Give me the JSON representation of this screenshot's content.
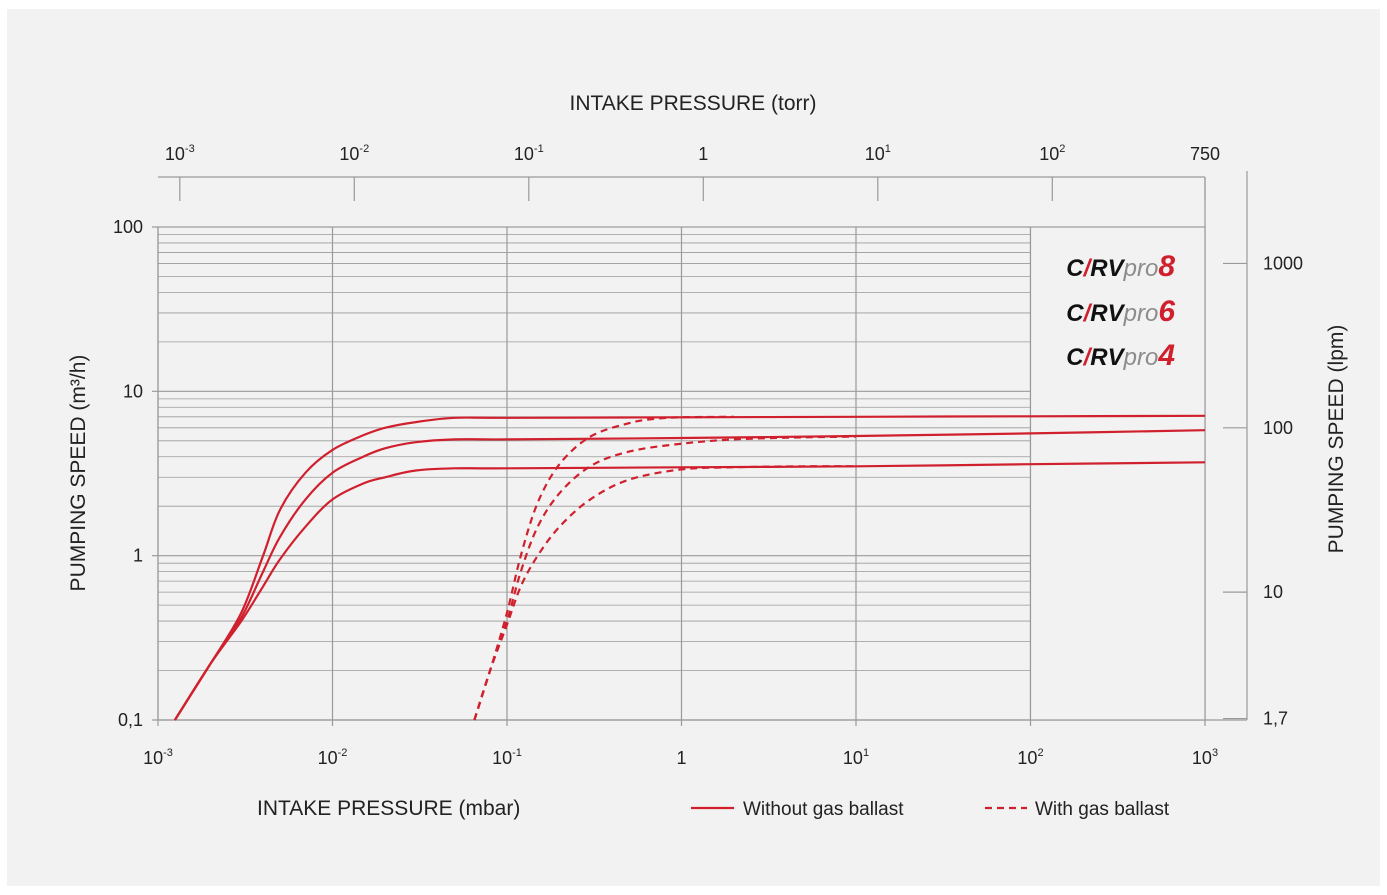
{
  "chart_data": {
    "type": "line",
    "xlabel_bold": "INTAKE PRESSURE",
    "xlabel_unit": "(mbar)",
    "top_xlabel_bold": "INTAKE PRESSURE",
    "top_xlabel_unit": "(torr)",
    "ylabel_bold": "PUMPING SPEED",
    "ylabel_unit": "(m³/h)",
    "right_ylabel_bold": "PUMPING SPEED",
    "right_ylabel_unit": "(lpm)",
    "x_scale": "log",
    "y_scale": "log",
    "xlim": [
      0.001,
      1000
    ],
    "ylim": [
      0.1,
      100
    ],
    "grid": true,
    "x_ticks": [
      {
        "value": 0.001,
        "base": "10",
        "exp": "-3"
      },
      {
        "value": 0.01,
        "base": "10",
        "exp": "-2"
      },
      {
        "value": 0.1,
        "base": "10",
        "exp": "-1"
      },
      {
        "value": 1,
        "base": "1",
        "exp": ""
      },
      {
        "value": 10,
        "base": "10",
        "exp": "1"
      },
      {
        "value": 100,
        "base": "10",
        "exp": "2"
      },
      {
        "value": 1000,
        "base": "10",
        "exp": "3"
      }
    ],
    "y_ticks": [
      {
        "value": 0.1,
        "label": "0,1"
      },
      {
        "value": 1,
        "label": "1"
      },
      {
        "value": 10,
        "label": "10"
      },
      {
        "value": 100,
        "label": "100"
      }
    ],
    "top_ticks": [
      {
        "torr": 0.001,
        "base": "10",
        "exp": "-3"
      },
      {
        "torr": 0.01,
        "base": "10",
        "exp": "-2"
      },
      {
        "torr": 0.1,
        "base": "10",
        "exp": "-1"
      },
      {
        "torr": 1,
        "base": "1",
        "exp": ""
      },
      {
        "torr": 10,
        "base": "10",
        "exp": "1"
      },
      {
        "torr": 100,
        "base": "10",
        "exp": "2"
      },
      {
        "torr": 750,
        "base": "750",
        "exp": ""
      }
    ],
    "right_ticks": [
      {
        "lpm": 1000,
        "label": "1000"
      },
      {
        "lpm": 100,
        "label": "100"
      },
      {
        "lpm": 10,
        "label": "10"
      },
      {
        "lpm": 1.7,
        "label": "1,7"
      }
    ],
    "series": [
      {
        "model": "CRVpro8",
        "style": "solid",
        "x": [
          0.00125,
          0.002,
          0.003,
          0.004,
          0.005,
          0.007,
          0.01,
          0.015,
          0.02,
          0.03,
          0.05,
          0.1,
          1,
          10,
          100,
          1000
        ],
        "y": [
          0.1,
          0.22,
          0.45,
          1.0,
          1.9,
          3.2,
          4.4,
          5.4,
          6.0,
          6.5,
          6.9,
          6.9,
          6.95,
          7.0,
          7.05,
          7.1
        ]
      },
      {
        "model": "CRVpro6",
        "style": "solid",
        "x": [
          0.00125,
          0.002,
          0.003,
          0.004,
          0.005,
          0.007,
          0.01,
          0.015,
          0.02,
          0.03,
          0.05,
          0.1,
          1,
          10,
          100,
          1000
        ],
        "y": [
          0.1,
          0.22,
          0.42,
          0.8,
          1.3,
          2.2,
          3.2,
          4.0,
          4.5,
          4.9,
          5.1,
          5.1,
          5.2,
          5.35,
          5.55,
          5.8
        ]
      },
      {
        "model": "CRVpro4",
        "style": "solid",
        "x": [
          0.00125,
          0.002,
          0.003,
          0.004,
          0.005,
          0.007,
          0.01,
          0.015,
          0.02,
          0.03,
          0.05,
          0.1,
          1,
          10,
          100,
          1000
        ],
        "y": [
          0.1,
          0.22,
          0.4,
          0.65,
          0.95,
          1.5,
          2.2,
          2.75,
          3.0,
          3.3,
          3.4,
          3.4,
          3.45,
          3.5,
          3.6,
          3.7
        ]
      },
      {
        "model": "CRVpro8",
        "style": "dashed",
        "x": [
          0.065,
          0.08,
          0.1,
          0.12,
          0.15,
          0.2,
          0.3,
          0.5,
          0.7,
          1,
          2
        ],
        "y": [
          0.1,
          0.2,
          0.45,
          1.0,
          2.1,
          3.6,
          5.3,
          6.4,
          6.8,
          6.95,
          7.0
        ]
      },
      {
        "model": "CRVpro6",
        "style": "dashed",
        "x": [
          0.065,
          0.08,
          0.1,
          0.12,
          0.15,
          0.2,
          0.3,
          0.5,
          1,
          2,
          5,
          10
        ],
        "y": [
          0.1,
          0.2,
          0.4,
          0.8,
          1.5,
          2.4,
          3.5,
          4.3,
          4.8,
          5.1,
          5.25,
          5.3
        ]
      },
      {
        "model": "CRVpro4",
        "style": "dashed",
        "x": [
          0.065,
          0.08,
          0.1,
          0.12,
          0.15,
          0.2,
          0.3,
          0.5,
          1,
          2,
          5,
          10
        ],
        "y": [
          0.1,
          0.2,
          0.38,
          0.65,
          1.0,
          1.5,
          2.2,
          2.9,
          3.35,
          3.45,
          3.5,
          3.5
        ]
      }
    ],
    "brands": [
      {
        "c": "C",
        "slash": "/",
        "rv": "RV",
        "pro": "pro",
        "num": "8"
      },
      {
        "c": "C",
        "slash": "/",
        "rv": "RV",
        "pro": "pro",
        "num": "6"
      },
      {
        "c": "C",
        "slash": "/",
        "rv": "RV",
        "pro": "pro",
        "num": "4"
      }
    ],
    "legend": {
      "solid": "Without gas ballast",
      "dashed": "With gas ballast"
    },
    "colors": {
      "curve": "#d0202e",
      "grid": "#9a9a9a",
      "axis": "#9a9a9a",
      "text": "#222222",
      "brand_grey": "#8c8c8c",
      "background": "#f2f2f2"
    }
  }
}
